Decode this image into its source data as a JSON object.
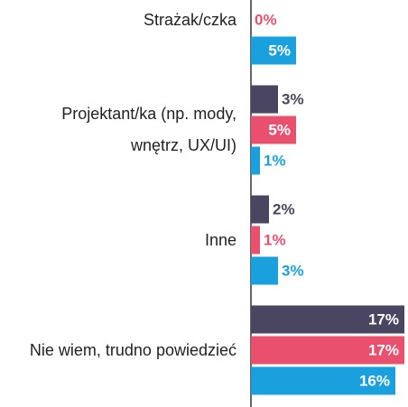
{
  "chart_data": {
    "type": "bar",
    "orientation": "horizontal",
    "categories": [
      "Strażak/czka",
      "Projektant/ka (np. mody, wnętrz, UX/UI)",
      "Inne",
      "Nie wiem, trudno powiedzieć"
    ],
    "series": [
      {
        "color": "#4a4560",
        "values": [
          null,
          3,
          2,
          17
        ],
        "value_labels": [
          null,
          "3%",
          "2%",
          "17%"
        ]
      },
      {
        "color": "#e8506e",
        "values": [
          0,
          5,
          1,
          17
        ],
        "value_labels": [
          "0%",
          "5%",
          "1%",
          "17%"
        ]
      },
      {
        "color": "#1aa0dc",
        "values": [
          5,
          1,
          3,
          16
        ],
        "value_labels": [
          "5%",
          "1%",
          "3%",
          "16%"
        ]
      }
    ],
    "xlim": [
      0,
      17.4
    ]
  }
}
